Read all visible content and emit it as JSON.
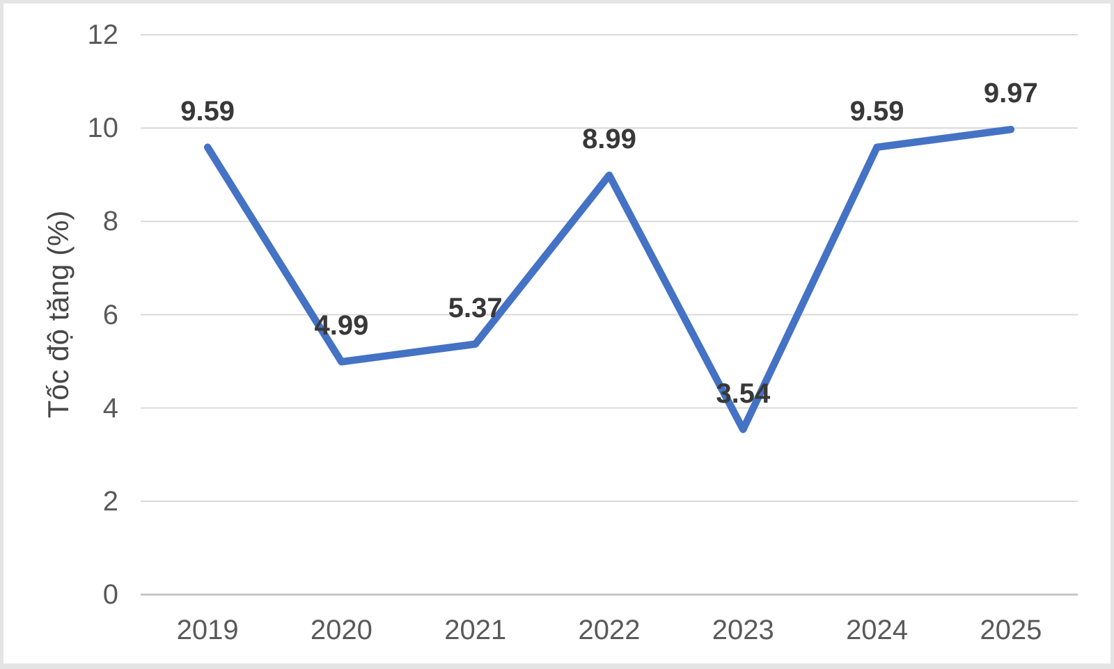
{
  "chart_data": {
    "type": "line",
    "title": "",
    "categories": [
      "2019",
      "2020",
      "2021",
      "2022",
      "2023",
      "2024",
      "2025"
    ],
    "values": [
      9.59,
      4.99,
      5.37,
      8.99,
      3.54,
      9.59,
      9.97
    ],
    "data_labels": [
      "9.59",
      "4.99",
      "5.37",
      "8.99",
      "3.54",
      "9.59",
      "9.97"
    ],
    "xlabel": "",
    "ylabel": "Tốc độ tăng (%)",
    "ylim": [
      0,
      12
    ],
    "yticks": [
      0,
      2,
      4,
      6,
      8,
      10,
      12
    ],
    "grid": true,
    "legend": "none",
    "line_color": "#4472C4",
    "gridline_color": "#D9D9D9",
    "axis_line_color": "#C6C6C6",
    "tick_label_color": "#595959",
    "data_label_color": "#383838",
    "background_color": "#FFFFFF",
    "frame_color": "#E4E4E4"
  }
}
